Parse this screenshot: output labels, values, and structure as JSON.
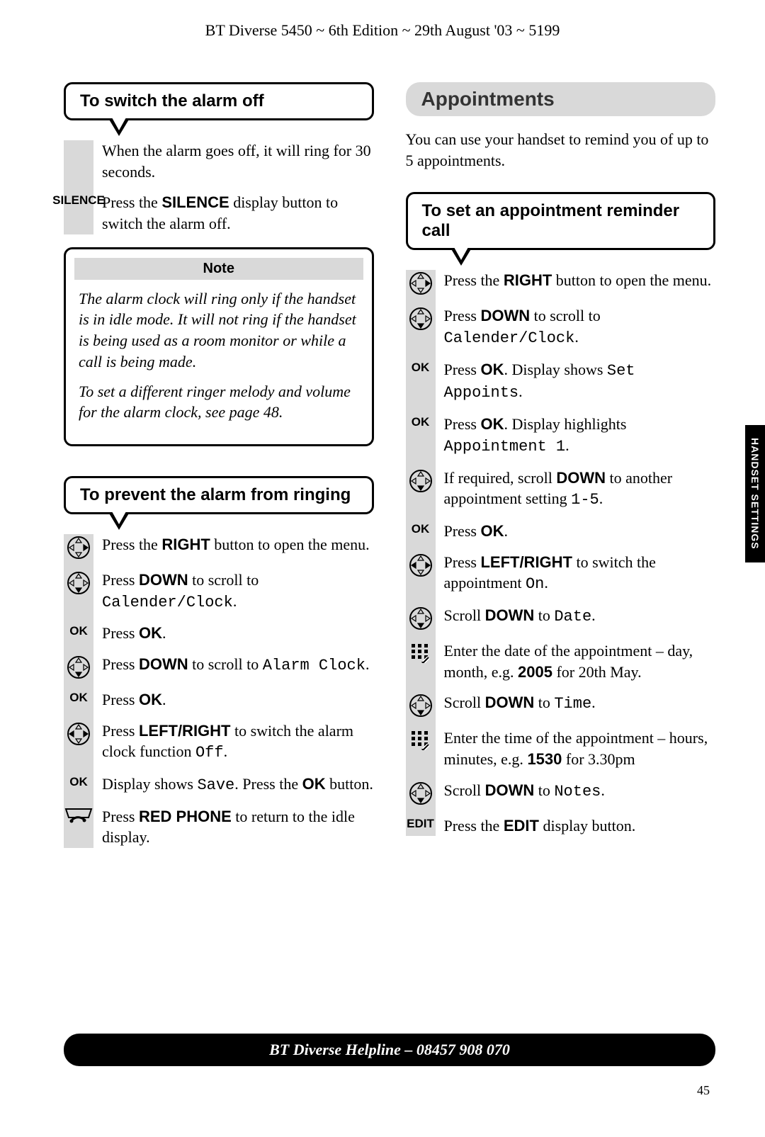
{
  "header": "BT Diverse 5450 ~ 6th Edition ~ 29th August '03 ~ 5199",
  "side_tab": "HANDSET SETTINGS",
  "footer": "BT Diverse Helpline – 08457 908 070",
  "page_number": "45",
  "colors": {
    "grey_bg": "#d9d9d9",
    "black": "#000000",
    "white": "#ffffff"
  },
  "left": {
    "box1": {
      "title": "To switch the alarm off",
      "steps": [
        {
          "icon": "none",
          "html": "When the alarm goes off, it will ring for 30 seconds."
        },
        {
          "icon": "label",
          "label": "SILENCE",
          "html": "Press the <b>SILENCE</b> display button to switch the alarm off."
        }
      ]
    },
    "note": {
      "title": "Note",
      "p1": "The alarm clock will ring only if the handset is in idle mode. It will not ring if the handset is being used as a room monitor or while a call is being made.",
      "p2": "To set a different ringer melody and volume for the alarm clock, see page 48."
    },
    "box2": {
      "title": "To prevent the alarm from ringing",
      "steps": [
        {
          "icon": "nav-right",
          "html": "Press the <b>RIGHT</b> button to open the menu."
        },
        {
          "icon": "nav-down",
          "html": "Press <b>DOWN</b> to scroll to <span class='lcd'>Calender/Clock</span>."
        },
        {
          "icon": "ok",
          "html": "Press <b>OK</b>."
        },
        {
          "icon": "nav-down",
          "html": "Press <b>DOWN</b> to scroll to <span class='lcd'>Alarm Clock</span>."
        },
        {
          "icon": "ok",
          "html": "Press <b>OK</b>."
        },
        {
          "icon": "nav-lr",
          "html": "Press <b>LEFT/RIGHT</b> to switch the alarm clock function <span class='lcd'>Off</span>."
        },
        {
          "icon": "ok",
          "html": "Display shows <span class='lcd'>Save</span>. Press the <b>OK</b> button."
        },
        {
          "icon": "phone",
          "html": "Press <b>RED PHONE</b> to return to the idle display."
        }
      ]
    }
  },
  "right": {
    "section_title": "Appointments",
    "intro": "You can use your handset to remind you of up to 5 appointments.",
    "box1": {
      "title": "To set an appointment reminder call",
      "steps": [
        {
          "icon": "nav-right",
          "html": "Press the <b>RIGHT</b> button to open the menu."
        },
        {
          "icon": "nav-down",
          "html": "Press <b>DOWN</b> to scroll to <span class='lcd'>Calender/Clock</span>."
        },
        {
          "icon": "ok",
          "html": "Press <b>OK</b>.  Display shows <span class='lcd'>Set Appoints</span>."
        },
        {
          "icon": "ok",
          "html": "Press <b>OK</b>. Display highlights <span class='lcd'>Appointment 1</span>."
        },
        {
          "icon": "nav-down",
          "html": "If required, scroll <b>DOWN</b> to another appointment setting <span class='lcd'>1-5</span>."
        },
        {
          "icon": "ok",
          "html": "Press <b>OK</b>."
        },
        {
          "icon": "nav-lr",
          "html": "Press <b>LEFT/RIGHT</b> to switch the appointment <span class='lcd'>On</span>."
        },
        {
          "icon": "nav-down",
          "html": "Scroll <b>DOWN</b> to <span class='lcd'>Date</span>."
        },
        {
          "icon": "keypad",
          "html": "Enter the date of the appointment – day, month, e.g. <b>2005</b> for 20th May."
        },
        {
          "icon": "nav-down",
          "html": "Scroll <b>DOWN</b> to <span class='lcd'>Time</span>."
        },
        {
          "icon": "keypad",
          "html": "Enter the time of the appointment – hours, minutes, e.g. <b>1530</b> for 3.30pm"
        },
        {
          "icon": "nav-down",
          "html": "Scroll <b>DOWN</b> to <span class='lcd'>Notes</span>."
        },
        {
          "icon": "label",
          "label": "EDIT",
          "html": "Press the <b>EDIT</b> display button."
        }
      ]
    }
  }
}
